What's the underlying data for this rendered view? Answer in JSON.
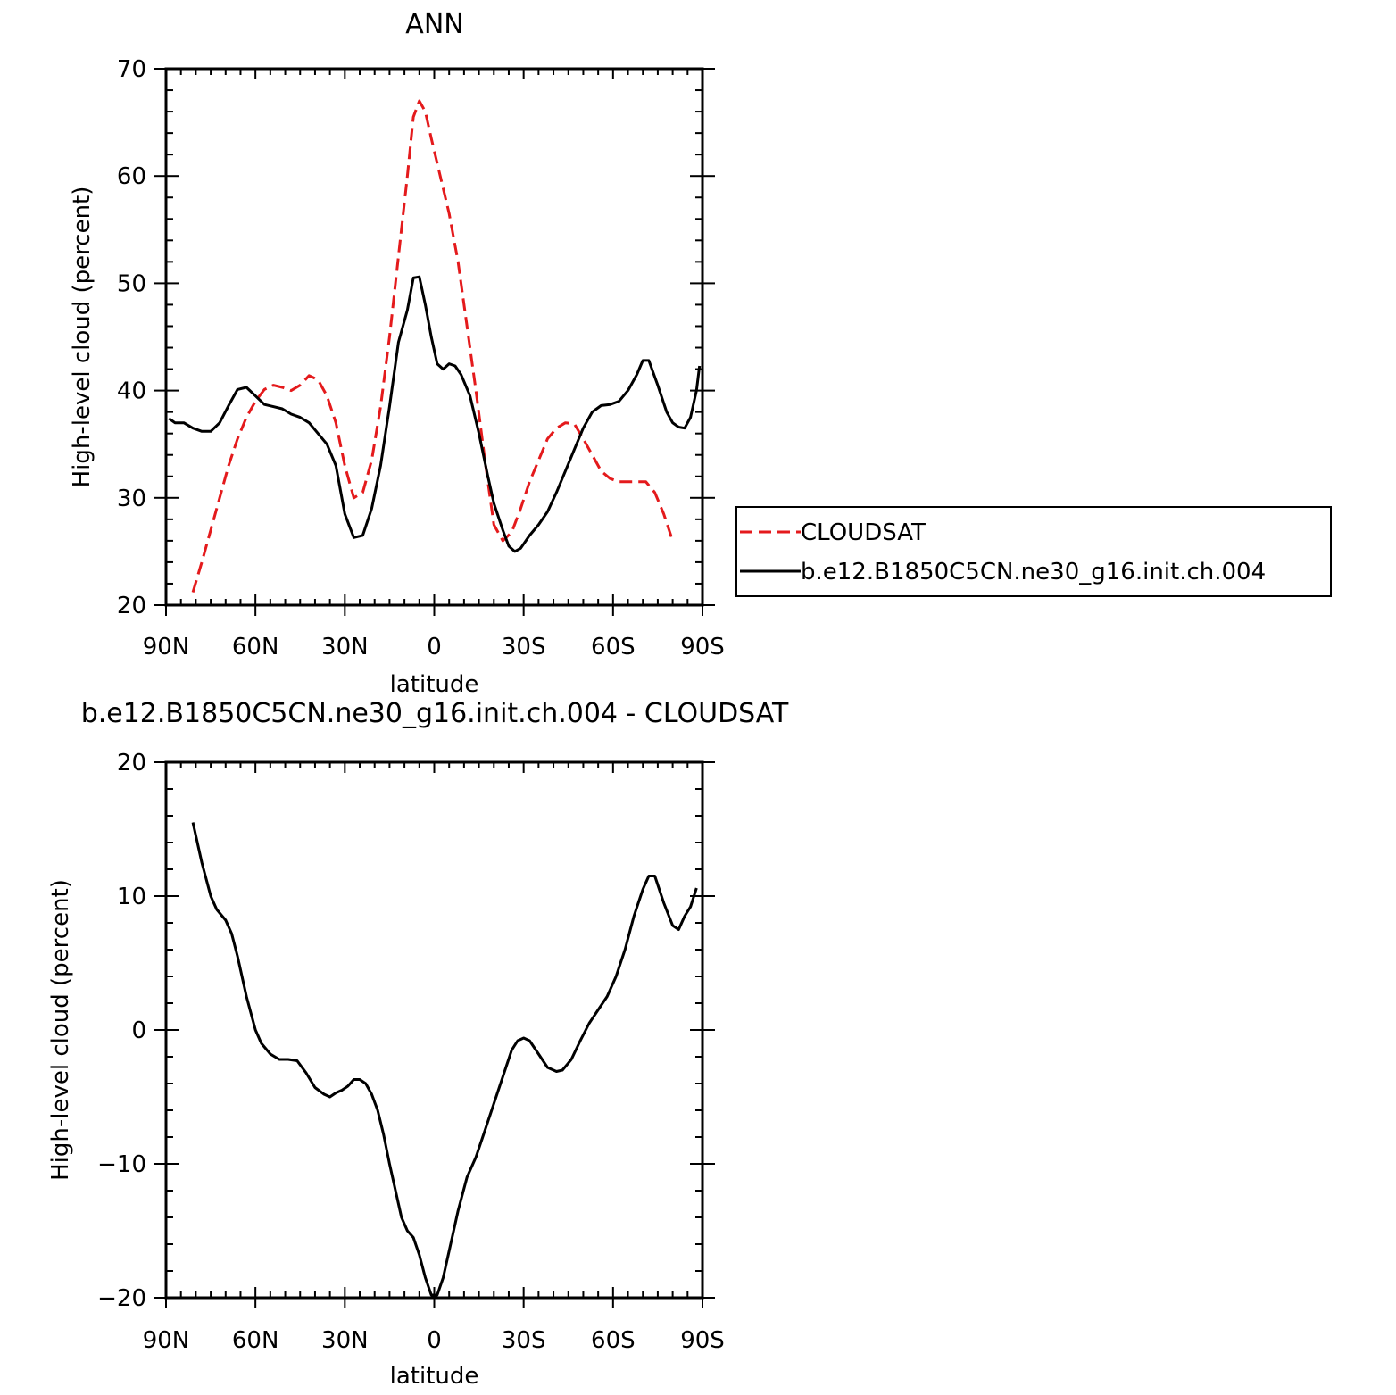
{
  "chart_data": [
    {
      "type": "line",
      "title": "ANN",
      "xlabel": "latitude",
      "ylabel": "High-level cloud (percent)",
      "xlim": [
        90,
        -90
      ],
      "ylim": [
        20,
        70
      ],
      "x_ticks": [
        90,
        60,
        30,
        0,
        -30,
        -60,
        -90
      ],
      "x_tick_labels": [
        "90N",
        "60N",
        "30N",
        "0",
        "30S",
        "60S",
        "90S"
      ],
      "y_ticks": [
        20,
        30,
        40,
        50,
        60,
        70
      ],
      "y_tick_labels": [
        "20",
        "30",
        "40",
        "50",
        "60",
        "70"
      ],
      "grid": false,
      "legend_position": "right",
      "series": [
        {
          "name": "CLOUDSAT",
          "color": "#e41a1c",
          "dash": "dashed",
          "points": [
            [
              81,
              21.2
            ],
            [
              78,
              24
            ],
            [
              75,
              27
            ],
            [
              72,
              30
            ],
            [
              69,
              33
            ],
            [
              66,
              35.5
            ],
            [
              63,
              37.5
            ],
            [
              60,
              39
            ],
            [
              57,
              40.1
            ],
            [
              54,
              40.5
            ],
            [
              51,
              40.3
            ],
            [
              48,
              40
            ],
            [
              45,
              40.5
            ],
            [
              42,
              41.4
            ],
            [
              39,
              41
            ],
            [
              36,
              39.5
            ],
            [
              33,
              37
            ],
            [
              30,
              33
            ],
            [
              27,
              30
            ],
            [
              24,
              30.5
            ],
            [
              21,
              33.5
            ],
            [
              18,
              38.5
            ],
            [
              15,
              45
            ],
            [
              12,
              52.5
            ],
            [
              9,
              60
            ],
            [
              7,
              65.5
            ],
            [
              5,
              67
            ],
            [
              3,
              66
            ],
            [
              1,
              63.5
            ],
            [
              -2,
              60
            ],
            [
              -5,
              56.5
            ],
            [
              -8,
              52
            ],
            [
              -11,
              46
            ],
            [
              -14,
              40
            ],
            [
              -17,
              33.5
            ],
            [
              -20,
              27.5
            ],
            [
              -23,
              26
            ],
            [
              -26,
              26.8
            ],
            [
              -29,
              29
            ],
            [
              -32,
              31.5
            ],
            [
              -35,
              33.5
            ],
            [
              -38,
              35.5
            ],
            [
              -41,
              36.5
            ],
            [
              -44,
              37
            ],
            [
              -47,
              36.9
            ],
            [
              -50,
              35.5
            ],
            [
              -53,
              34
            ],
            [
              -56,
              32.5
            ],
            [
              -59,
              31.8
            ],
            [
              -62,
              31.5
            ],
            [
              -65,
              31.5
            ],
            [
              -68,
              31.5
            ],
            [
              -71,
              31.5
            ],
            [
              -74,
              30.5
            ],
            [
              -77,
              28.5
            ],
            [
              -80,
              26
            ]
          ]
        },
        {
          "name": "b.e12.B1850C5CN.ne30_g16.init.ch.004",
          "color": "#000000",
          "dash": "solid",
          "points": [
            [
              89,
              37.4
            ],
            [
              87,
              37
            ],
            [
              84,
              37
            ],
            [
              81,
              36.5
            ],
            [
              78,
              36.2
            ],
            [
              75,
              36.2
            ],
            [
              72,
              37
            ],
            [
              69,
              38.6
            ],
            [
              66,
              40.1
            ],
            [
              63,
              40.3
            ],
            [
              60,
              39.5
            ],
            [
              57,
              38.7
            ],
            [
              54,
              38.5
            ],
            [
              51,
              38.3
            ],
            [
              48,
              37.8
            ],
            [
              45,
              37.5
            ],
            [
              42,
              37
            ],
            [
              39,
              36
            ],
            [
              36,
              35
            ],
            [
              33,
              33
            ],
            [
              30,
              28.5
            ],
            [
              27,
              26.3
            ],
            [
              24,
              26.5
            ],
            [
              21,
              29
            ],
            [
              18,
              33
            ],
            [
              15,
              38.5
            ],
            [
              12,
              44.5
            ],
            [
              9,
              47.5
            ],
            [
              7,
              50.5
            ],
            [
              5,
              50.6
            ],
            [
              3,
              48
            ],
            [
              1,
              45
            ],
            [
              -1,
              42.5
            ],
            [
              -3,
              42
            ],
            [
              -5,
              42.5
            ],
            [
              -7,
              42.3
            ],
            [
              -9,
              41.5
            ],
            [
              -12,
              39.5
            ],
            [
              -15,
              36
            ],
            [
              -18,
              32
            ],
            [
              -20,
              29.5
            ],
            [
              -23,
              27
            ],
            [
              -25,
              25.5
            ],
            [
              -27,
              25
            ],
            [
              -29,
              25.3
            ],
            [
              -32,
              26.5
            ],
            [
              -35,
              27.5
            ],
            [
              -38,
              28.7
            ],
            [
              -41,
              30.5
            ],
            [
              -44,
              32.5
            ],
            [
              -47,
              34.5
            ],
            [
              -50,
              36.5
            ],
            [
              -53,
              38
            ],
            [
              -56,
              38.6
            ],
            [
              -59,
              38.7
            ],
            [
              -62,
              39
            ],
            [
              -65,
              40
            ],
            [
              -68,
              41.5
            ],
            [
              -70,
              42.8
            ],
            [
              -72,
              42.8
            ],
            [
              -75,
              40.5
            ],
            [
              -78,
              38
            ],
            [
              -80,
              37
            ],
            [
              -82,
              36.6
            ],
            [
              -84,
              36.5
            ],
            [
              -86,
              37.5
            ],
            [
              -88,
              40
            ],
            [
              -89,
              42.3
            ]
          ]
        }
      ]
    },
    {
      "type": "line",
      "title": "b.e12.B1850C5CN.ne30_g16.init.ch.004 - CLOUDSAT",
      "xlabel": "latitude",
      "ylabel": "High-level cloud (percent)",
      "xlim": [
        90,
        -90
      ],
      "ylim": [
        -20,
        20
      ],
      "x_ticks": [
        90,
        60,
        30,
        0,
        -30,
        -60,
        -90
      ],
      "x_tick_labels": [
        "90N",
        "60N",
        "30N",
        "0",
        "30S",
        "60S",
        "90S"
      ],
      "y_ticks": [
        -20,
        -10,
        0,
        10,
        20
      ],
      "y_tick_labels": [
        "−20",
        "−10",
        "0",
        "10",
        "20"
      ],
      "grid": false,
      "series": [
        {
          "color": "#000000",
          "dash": "solid",
          "points": [
            [
              81,
              15.5
            ],
            [
              78,
              12.5
            ],
            [
              75,
              10
            ],
            [
              73,
              9
            ],
            [
              70,
              8.2
            ],
            [
              68,
              7.2
            ],
            [
              66,
              5.5
            ],
            [
              63,
              2.5
            ],
            [
              60,
              0
            ],
            [
              58,
              -1
            ],
            [
              55,
              -1.8
            ],
            [
              52,
              -2.2
            ],
            [
              49,
              -2.2
            ],
            [
              46,
              -2.3
            ],
            [
              43,
              -3.2
            ],
            [
              40,
              -4.3
            ],
            [
              37,
              -4.8
            ],
            [
              35,
              -5
            ],
            [
              33,
              -4.7
            ],
            [
              31,
              -4.5
            ],
            [
              29,
              -4.2
            ],
            [
              27,
              -3.7
            ],
            [
              25,
              -3.7
            ],
            [
              23,
              -4
            ],
            [
              21,
              -4.8
            ],
            [
              19,
              -6
            ],
            [
              17,
              -7.8
            ],
            [
              15,
              -10
            ],
            [
              13,
              -12
            ],
            [
              11,
              -14
            ],
            [
              9,
              -15
            ],
            [
              7,
              -15.5
            ],
            [
              5,
              -16.8
            ],
            [
              3,
              -18.5
            ],
            [
              1,
              -19.8
            ],
            [
              -1,
              -19.8
            ],
            [
              -3,
              -18.5
            ],
            [
              -5,
              -16.5
            ],
            [
              -8,
              -13.5
            ],
            [
              -11,
              -11
            ],
            [
              -14,
              -9.5
            ],
            [
              -17,
              -7.5
            ],
            [
              -20,
              -5.5
            ],
            [
              -23,
              -3.5
            ],
            [
              -26,
              -1.5
            ],
            [
              -28,
              -0.8
            ],
            [
              -30,
              -0.6
            ],
            [
              -32,
              -0.8
            ],
            [
              -35,
              -1.8
            ],
            [
              -38,
              -2.8
            ],
            [
              -41,
              -3.1
            ],
            [
              -43,
              -3
            ],
            [
              -46,
              -2.2
            ],
            [
              -49,
              -0.8
            ],
            [
              -52,
              0.5
            ],
            [
              -55,
              1.5
            ],
            [
              -58,
              2.5
            ],
            [
              -61,
              4
            ],
            [
              -64,
              6
            ],
            [
              -67,
              8.5
            ],
            [
              -70,
              10.5
            ],
            [
              -72,
              11.5
            ],
            [
              -74,
              11.5
            ],
            [
              -77,
              9.5
            ],
            [
              -80,
              7.8
            ],
            [
              -82,
              7.5
            ],
            [
              -84,
              8.5
            ],
            [
              -86,
              9.2
            ],
            [
              -88,
              10.6
            ]
          ]
        }
      ]
    }
  ],
  "legend": {
    "items": [
      {
        "label": "CLOUDSAT",
        "color": "#e41a1c",
        "dash": "dashed"
      },
      {
        "label": "b.e12.B1850C5CN.ne30_g16.init.ch.004",
        "color": "#000000",
        "dash": "solid"
      }
    ]
  }
}
